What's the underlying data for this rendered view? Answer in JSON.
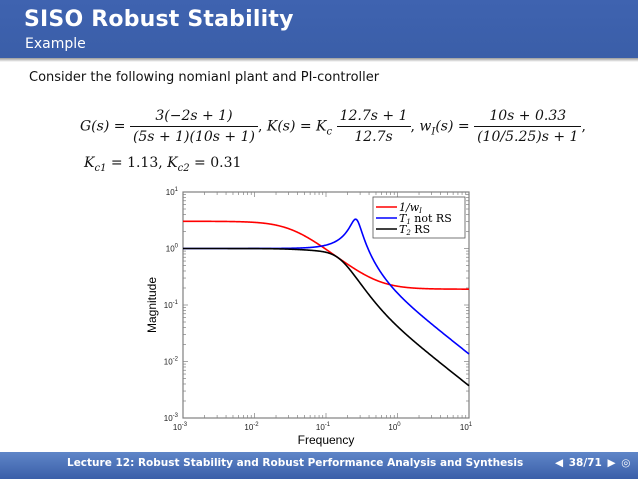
{
  "header": {
    "title": "SISO Robust Stability",
    "subtitle": "Example"
  },
  "body": {
    "intro": "Consider the following nomianl plant and PI-controller",
    "equations": {
      "G_lhs": "G(s) =",
      "G_num": "3(−2s + 1)",
      "G_den": "(5s + 1)(10s + 1)",
      "K_lhs": "K(s) = K",
      "K_sub": "c",
      "K_num": "12.7s + 1",
      "K_den": "12.7s",
      "w_lhs": "w",
      "w_sub": "I",
      "w_arg": "(s) =",
      "w_num": "10s + 0.33",
      "w_den": "(10/5.25)s + 1",
      "gains": "K",
      "kc1_sub": "c1",
      "kc1_val": " = 1.13, ",
      "kc2_sub": "c2",
      "kc2_val": " = 0.31"
    }
  },
  "chart_data": {
    "type": "line",
    "title": "",
    "xlabel": "Frequency",
    "ylabel": "Magnitude",
    "xscale": "log",
    "yscale": "log",
    "xlim": [
      0.001,
      10
    ],
    "ylim": [
      0.001,
      10
    ],
    "x_ticks": [
      "10^-3",
      "10^-2",
      "10^-1",
      "10^0",
      "10^1"
    ],
    "y_ticks": [
      "10^-3",
      "10^-2",
      "10^-1",
      "10^0",
      "10^1"
    ],
    "grid": false,
    "legend_position": "upper right",
    "legend": [
      "1/w_I",
      "T_1 not RS",
      "T_2 RS"
    ],
    "series": [
      {
        "name": "1/w_I",
        "color": "#ff0000",
        "x": [
          0.001,
          0.01,
          0.03,
          0.1,
          0.2,
          0.3,
          0.5,
          1,
          3,
          10
        ],
        "values": [
          3.03,
          2.97,
          2.58,
          1.07,
          0.53,
          0.38,
          0.27,
          0.22,
          0.195,
          0.19
        ]
      },
      {
        "name": "T_1 not RS",
        "color": "#0000ff",
        "x": [
          0.001,
          0.01,
          0.03,
          0.1,
          0.2,
          0.26,
          0.3,
          0.5,
          1,
          3,
          10
        ],
        "values": [
          1.0,
          1.0,
          1.02,
          1.2,
          2.2,
          3.2,
          2.5,
          0.6,
          0.16,
          0.045,
          0.013
        ]
      },
      {
        "name": "T_2 RS",
        "color": "#000000",
        "x": [
          0.001,
          0.01,
          0.03,
          0.1,
          0.2,
          0.3,
          0.5,
          1,
          3,
          10
        ],
        "values": [
          1.0,
          1.0,
          0.99,
          0.88,
          0.5,
          0.23,
          0.09,
          0.04,
          0.012,
          0.0037
        ]
      }
    ]
  },
  "footer": {
    "lecture": "Lecture 12: Robust Stability and Robust Performance Analysis and Synthesis",
    "prev_icon": "◀",
    "page": "38/71",
    "next_icon": "▶",
    "search_icon": "◎"
  }
}
